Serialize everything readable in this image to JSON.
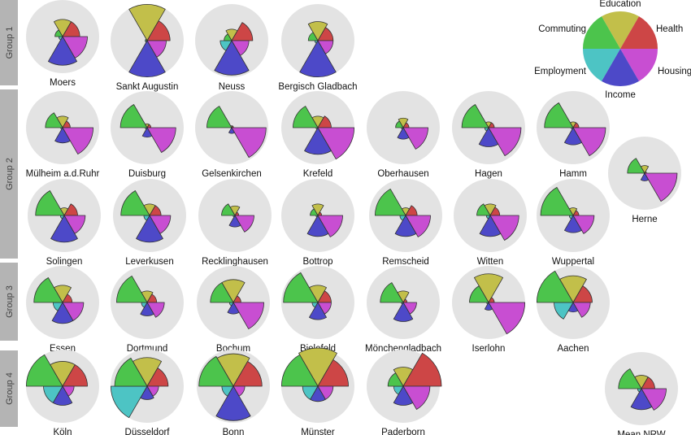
{
  "chart_data": {
    "type": "radial-area",
    "dimensions": [
      "Education",
      "Health",
      "Housing",
      "Income",
      "Employment",
      "Commuting"
    ],
    "colors": {
      "Education": "#c2bf4a",
      "Health": "#cd4646",
      "Housing": "#c84ed2",
      "Income": "#4d49c8",
      "Employment": "#4dc4c4",
      "Commuting": "#4cc44c",
      "background": "#e3e3e3",
      "group_bar": "#b4b4b4"
    },
    "groups": [
      "Group 1",
      "Group 2",
      "Group 3",
      "Group 4"
    ],
    "legend": {
      "labels": [
        "Education",
        "Health",
        "Housing",
        "Income",
        "Employment",
        "Commuting"
      ]
    },
    "cities": [
      {
        "name": "Moers",
        "group": "Group 1",
        "values": [
          0.45,
          0.45,
          0.65,
          0.75,
          0.1,
          0.2
        ]
      },
      {
        "name": "Sankt Augustin",
        "group": "Group 1",
        "values": [
          0.95,
          0.6,
          0.5,
          0.95,
          0.05,
          0.05
        ]
      },
      {
        "name": "Neuss",
        "group": "Group 1",
        "values": [
          0.3,
          0.55,
          0.45,
          0.9,
          0.3,
          0.2
        ]
      },
      {
        "name": "Bergisch Gladbach",
        "group": "Group 1",
        "values": [
          0.5,
          0.4,
          0.4,
          0.95,
          0.08,
          0.25
        ]
      },
      {
        "name": "Mülheim a.d.Ruhr",
        "group": "Group 2",
        "values": [
          0.3,
          0.2,
          0.8,
          0.4,
          0.05,
          0.45
        ]
      },
      {
        "name": "Duisburg",
        "group": "Group 2",
        "values": [
          0.1,
          0.1,
          0.75,
          0.25,
          0.05,
          0.7
        ]
      },
      {
        "name": "Gelsenkirchen",
        "group": "Group 2",
        "values": [
          0.05,
          0.05,
          0.9,
          0.15,
          0.02,
          0.65
        ]
      },
      {
        "name": "Krefeld",
        "group": "Group 2",
        "values": [
          0.3,
          0.35,
          0.95,
          0.7,
          0.05,
          0.65
        ]
      },
      {
        "name": "Oberhausen",
        "group": "Group 2",
        "values": [
          0.25,
          0.15,
          0.65,
          0.3,
          0.05,
          0.2
        ]
      },
      {
        "name": "Hagen",
        "group": "Group 2",
        "values": [
          0.15,
          0.15,
          0.85,
          0.5,
          0.1,
          0.7
        ]
      },
      {
        "name": "Hamm",
        "group": "Group 2",
        "values": [
          0.15,
          0.15,
          0.85,
          0.45,
          0.05,
          0.75
        ]
      },
      {
        "name": "Herne",
        "group": "Group 2",
        "values": [
          0.2,
          0.05,
          0.85,
          0.2,
          0.02,
          0.45
        ]
      },
      {
        "name": "Solingen",
        "group": "Group 2",
        "values": [
          0.2,
          0.35,
          0.55,
          0.7,
          0.1,
          0.75
        ]
      },
      {
        "name": "Leverkusen",
        "group": "Group 2",
        "values": [
          0.3,
          0.3,
          0.55,
          0.7,
          0.15,
          0.75
        ]
      },
      {
        "name": "Recklinghausen",
        "group": "Group 2",
        "values": [
          0.25,
          0.1,
          0.5,
          0.3,
          0.05,
          0.35
        ]
      },
      {
        "name": "Bottrop",
        "group": "Group 2",
        "values": [
          0.3,
          0.1,
          0.65,
          0.55,
          0.05,
          0.2
        ]
      },
      {
        "name": "Remscheid",
        "group": "Group 2",
        "values": [
          0.2,
          0.3,
          0.65,
          0.55,
          0.15,
          0.8
        ]
      },
      {
        "name": "Witten",
        "group": "Group 2",
        "values": [
          0.3,
          0.25,
          0.75,
          0.55,
          0.1,
          0.35
        ]
      },
      {
        "name": "Wuppertal",
        "group": "Group 2",
        "values": [
          0.2,
          0.15,
          0.55,
          0.45,
          0.1,
          0.85
        ]
      },
      {
        "name": "Essen",
        "group": "Group 3",
        "values": [
          0.45,
          0.25,
          0.55,
          0.55,
          0.25,
          0.75
        ]
      },
      {
        "name": "Dortmund",
        "group": "Group 3",
        "values": [
          0.3,
          0.25,
          0.45,
          0.35,
          0.15,
          0.8
        ]
      },
      {
        "name": "Bochum",
        "group": "Group 3",
        "values": [
          0.6,
          0.2,
          0.8,
          0.3,
          0.1,
          0.6
        ]
      },
      {
        "name": "Bielefeld",
        "group": "Group 3",
        "values": [
          0.45,
          0.35,
          0.35,
          0.45,
          0.15,
          0.9
        ]
      },
      {
        "name": "Mönchengladbach",
        "group": "Group 3",
        "values": [
          0.3,
          0.1,
          0.35,
          0.5,
          0.05,
          0.6
        ]
      },
      {
        "name": "Iserlohn",
        "group": "Group 3",
        "values": [
          0.75,
          0.15,
          0.95,
          0.2,
          0.05,
          0.5
        ]
      },
      {
        "name": "Aachen",
        "group": "Group 3",
        "values": [
          0.7,
          0.5,
          0.45,
          0.25,
          0.5,
          0.95
        ]
      },
      {
        "name": "Köln",
        "group": "Group 4",
        "values": [
          0.65,
          0.65,
          0.3,
          0.5,
          0.5,
          0.95
        ]
      },
      {
        "name": "Düsseldorf",
        "group": "Group 4",
        "values": [
          0.75,
          0.55,
          0.3,
          0.35,
          0.95,
          0.85
        ]
      },
      {
        "name": "Bonn",
        "group": "Group 4",
        "values": [
          0.85,
          0.75,
          0.3,
          0.9,
          0.3,
          0.9
        ]
      },
      {
        "name": "Münster",
        "group": "Group 4",
        "values": [
          1.0,
          0.8,
          0.4,
          0.4,
          0.4,
          0.95
        ]
      },
      {
        "name": "Paderborn",
        "group": "Group 4",
        "values": [
          0.5,
          1.0,
          0.7,
          0.5,
          0.25,
          0.4
        ]
      },
      {
        "name": "Mean NRW",
        "group": "",
        "values": [
          0.35,
          0.35,
          0.65,
          0.55,
          0.1,
          0.6
        ]
      }
    ]
  }
}
